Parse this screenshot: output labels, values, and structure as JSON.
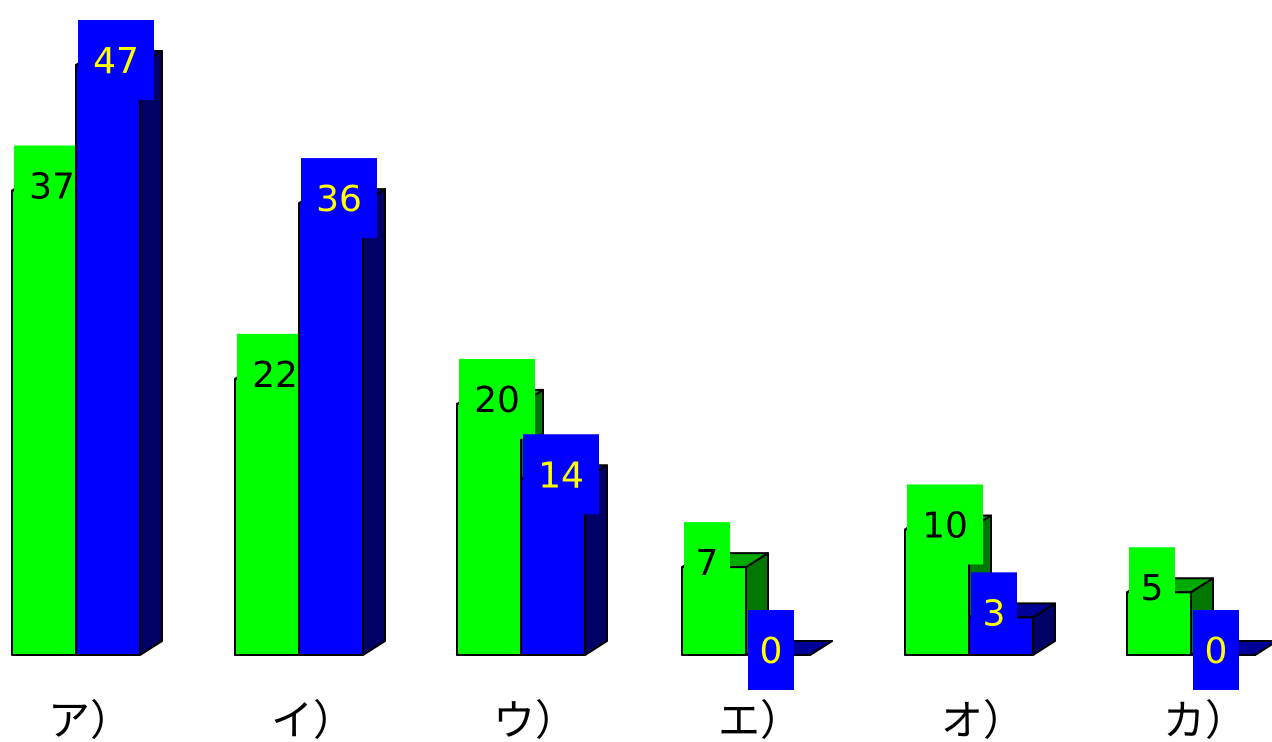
{
  "chart_data": {
    "type": "bar",
    "categories": [
      "ア）",
      "イ）",
      "ウ）",
      "エ）",
      "オ）",
      "カ）"
    ],
    "series": [
      {
        "values": [
          37,
          22,
          20,
          7,
          10,
          5
        ]
      },
      {
        "values": [
          47,
          36,
          14,
          0,
          3,
          0
        ]
      }
    ],
    "ylim": [
      0,
      47
    ],
    "grid": false,
    "legend": "none",
    "colors": {
      "series1_front": "#00ff00",
      "series1_side": "#007700",
      "series1_top": "#00aa00",
      "series2_front": "#0000ff",
      "series2_side": "#000066",
      "series2_top": "#000099",
      "series1_label_text": "#000000",
      "series2_label_text": "#ffff00"
    }
  }
}
